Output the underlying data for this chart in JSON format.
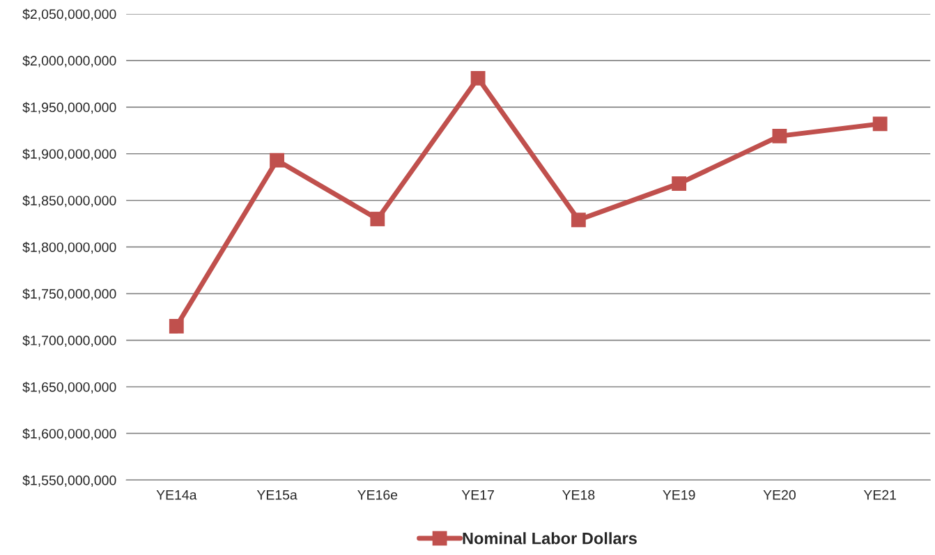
{
  "chart_data": {
    "type": "line",
    "categories": [
      "YE14a",
      "YE15a",
      "YE16e",
      "YE17",
      "YE18",
      "YE19",
      "YE20",
      "YE21"
    ],
    "series": [
      {
        "name": "Nominal Labor Dollars",
        "color": "#c0504d",
        "values": [
          1715000000,
          1893000000,
          1830000000,
          1981000000,
          1829000000,
          1868000000,
          1919000000,
          1932000000
        ]
      }
    ],
    "ylim": [
      1550000000,
      2050000000
    ],
    "yticks": [
      {
        "value": 1550000000,
        "label": "$1,550,000,000"
      },
      {
        "value": 1600000000,
        "label": "$1,600,000,000"
      },
      {
        "value": 1650000000,
        "label": "$1,650,000,000"
      },
      {
        "value": 1700000000,
        "label": "$1,700,000,000"
      },
      {
        "value": 1750000000,
        "label": "$1,750,000,000"
      },
      {
        "value": 1800000000,
        "label": "$1,800,000,000"
      },
      {
        "value": 1850000000,
        "label": "$1,850,000,000"
      },
      {
        "value": 1900000000,
        "label": "$1,900,000,000"
      },
      {
        "value": 1950000000,
        "label": "$1,950,000,000"
      },
      {
        "value": 2000000000,
        "label": "$2,000,000,000"
      },
      {
        "value": 2050000000,
        "label": "$2,050,000,000"
      }
    ],
    "grid": "y",
    "legend": "bottom",
    "marker": "square",
    "line_style": "solid"
  }
}
